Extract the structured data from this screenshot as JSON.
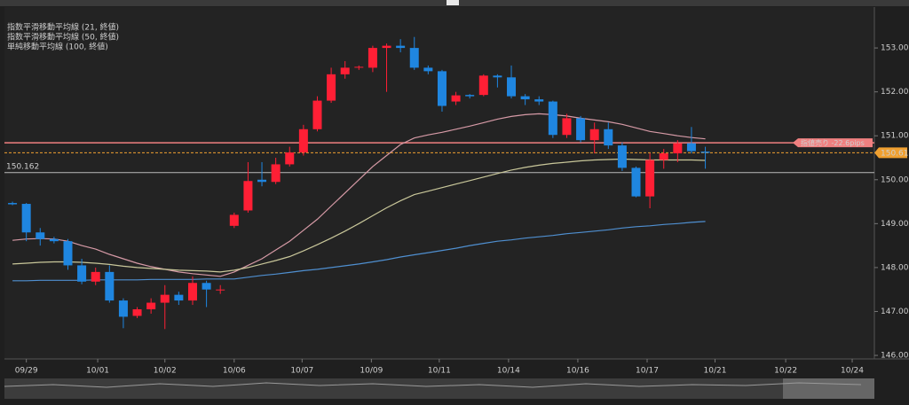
{
  "chart_data": {
    "type": "candlestick",
    "x": [
      0,
      1,
      2,
      3,
      4,
      5,
      6,
      7,
      8,
      9,
      10,
      11,
      12,
      13,
      14,
      15,
      16,
      17,
      18,
      19,
      20,
      21,
      22,
      23,
      24,
      25,
      26,
      27,
      28,
      29,
      30,
      31,
      32,
      33,
      34,
      35,
      36,
      37,
      38,
      39,
      40,
      41,
      42,
      43,
      44,
      45,
      46,
      47,
      48,
      49,
      50
    ],
    "open": [
      149.47,
      149.45,
      148.8,
      148.65,
      148.6,
      148.05,
      147.68,
      147.9,
      147.25,
      146.9,
      147.05,
      147.2,
      147.38,
      147.25,
      147.65,
      147.49,
      148.95,
      149.3,
      150.0,
      149.95,
      150.35,
      150.62,
      151.15,
      151.8,
      152.4,
      152.55,
      152.55,
      153.0,
      153.05,
      153.0,
      152.55,
      152.47,
      151.78,
      151.93,
      151.93,
      152.37,
      152.33,
      151.9,
      151.83,
      151.78,
      151.02,
      151.4,
      150.9,
      151.15,
      150.78,
      150.27,
      149.62,
      150.45,
      150.6,
      150.83,
      150.64
    ],
    "high": [
      149.5,
      149.47,
      148.9,
      148.7,
      148.65,
      148.2,
      148.0,
      148.05,
      147.3,
      147.1,
      147.3,
      147.6,
      147.45,
      147.8,
      147.7,
      147.6,
      149.25,
      150.4,
      150.4,
      150.5,
      150.75,
      151.25,
      151.9,
      152.55,
      152.7,
      152.6,
      153.05,
      153.1,
      153.2,
      153.25,
      152.6,
      152.5,
      152.0,
      151.95,
      152.4,
      152.4,
      152.6,
      151.95,
      151.9,
      151.8,
      151.5,
      151.45,
      151.3,
      151.3,
      150.85,
      150.3,
      150.6,
      150.7,
      150.9,
      151.2,
      150.75
    ],
    "low": [
      149.42,
      148.6,
      148.5,
      148.55,
      147.95,
      147.62,
      147.6,
      147.2,
      146.62,
      146.85,
      146.95,
      146.6,
      147.15,
      147.15,
      147.1,
      147.4,
      148.9,
      149.25,
      149.85,
      149.9,
      150.3,
      150.55,
      151.1,
      151.75,
      152.3,
      152.5,
      152.45,
      152.0,
      152.9,
      152.5,
      152.4,
      151.55,
      151.7,
      151.85,
      151.9,
      152.1,
      151.85,
      151.7,
      151.7,
      150.95,
      150.95,
      150.85,
      150.6,
      150.7,
      150.2,
      149.6,
      149.35,
      150.25,
      150.4,
      150.6,
      150.25
    ],
    "close": [
      149.44,
      148.8,
      148.65,
      148.6,
      148.05,
      147.68,
      147.9,
      147.25,
      146.88,
      147.05,
      147.2,
      147.38,
      147.25,
      147.65,
      147.5,
      147.5,
      149.2,
      149.97,
      149.95,
      150.35,
      150.62,
      151.15,
      151.8,
      152.4,
      152.55,
      152.57,
      153.0,
      153.05,
      153.0,
      152.55,
      152.47,
      151.68,
      151.92,
      151.9,
      152.37,
      152.33,
      151.9,
      151.83,
      151.78,
      151.02,
      151.4,
      150.9,
      151.15,
      150.78,
      150.27,
      149.62,
      150.45,
      150.6,
      150.83,
      150.65,
      150.614
    ],
    "up_color": "#ff1f35",
    "down_color": "#1f86e0",
    "series": [
      {
        "name": "指数平滑移動平均線 (21, 終値)",
        "color": "#d69aa6",
        "values": [
          148.62,
          148.65,
          148.66,
          148.65,
          148.6,
          148.5,
          148.42,
          148.3,
          148.2,
          148.1,
          148.02,
          147.96,
          147.9,
          147.86,
          147.83,
          147.8,
          147.9,
          148.05,
          148.2,
          148.4,
          148.6,
          148.85,
          149.1,
          149.4,
          149.7,
          150.0,
          150.3,
          150.55,
          150.8,
          150.95,
          151.02,
          151.08,
          151.15,
          151.22,
          151.3,
          151.38,
          151.44,
          151.48,
          151.5,
          151.48,
          151.45,
          151.4,
          151.36,
          151.32,
          151.26,
          151.18,
          151.1,
          151.05,
          151.0,
          150.96,
          150.93
        ]
      },
      {
        "name": "指数平滑移動平均線 (50, 終値)",
        "color": "#c9c79a",
        "values": [
          148.08,
          148.1,
          148.12,
          148.13,
          148.13,
          148.12,
          148.1,
          148.07,
          148.03,
          148.0,
          147.98,
          147.96,
          147.94,
          147.93,
          147.92,
          147.9,
          147.94,
          148.0,
          148.08,
          148.16,
          148.25,
          148.38,
          148.52,
          148.67,
          148.83,
          149.0,
          149.18,
          149.36,
          149.52,
          149.66,
          149.74,
          149.82,
          149.9,
          149.98,
          150.06,
          150.14,
          150.22,
          150.28,
          150.33,
          150.37,
          150.4,
          150.43,
          150.45,
          150.46,
          150.47,
          150.46,
          150.45,
          150.45,
          150.45,
          150.45,
          150.44
        ]
      },
      {
        "name": "単純移動平均線 (100, 終値)",
        "color": "#4f8fd0",
        "values": [
          147.7,
          147.7,
          147.71,
          147.71,
          147.71,
          147.71,
          147.72,
          147.72,
          147.72,
          147.72,
          147.73,
          147.73,
          147.73,
          147.73,
          147.74,
          147.74,
          147.74,
          147.78,
          147.82,
          147.85,
          147.89,
          147.93,
          147.96,
          148.0,
          148.04,
          148.08,
          148.13,
          148.18,
          148.24,
          148.29,
          148.34,
          148.39,
          148.44,
          148.5,
          148.55,
          148.6,
          148.63,
          148.67,
          148.7,
          148.73,
          148.77,
          148.8,
          148.83,
          148.86,
          148.9,
          148.93,
          148.95,
          148.98,
          149.0,
          149.03,
          149.05
        ]
      }
    ],
    "current_price": 150.614,
    "current_price_color": "#f0a030",
    "reference_line": 150.162,
    "order_line": {
      "value": 150.84,
      "label": "指値売り -22.6pips"
    },
    "order_color": "#f08080",
    "xlim": [
      -0.58,
      62.2
    ],
    "xticks": [
      {
        "value": 1,
        "label": "09/29"
      },
      {
        "value": 6.15,
        "label": "10/01"
      },
      {
        "value": 11,
        "label": "10/02"
      },
      {
        "value": 16,
        "label": "10/06"
      },
      {
        "value": 20.9,
        "label": "10/07"
      },
      {
        "value": 25.9,
        "label": "10/09"
      },
      {
        "value": 30.8,
        "label": "10/11"
      },
      {
        "value": 35.8,
        "label": "10/14"
      },
      {
        "value": 40.8,
        "label": "10/16"
      },
      {
        "value": 45.8,
        "label": "10/17"
      },
      {
        "value": 50.7,
        "label": "10/21"
      },
      {
        "value": 55.8,
        "label": "10/22"
      },
      {
        "value": 60.6,
        "label": "10/24"
      }
    ],
    "ylim": [
      145.92,
      153.93
    ],
    "yticks": [
      {
        "value": 146,
        "label": "146.000"
      },
      {
        "value": 147,
        "label": "147.000"
      },
      {
        "value": 148,
        "label": "148.000"
      },
      {
        "value": 149,
        "label": "149.000"
      },
      {
        "value": 150,
        "label": "150.000"
      },
      {
        "value": 151,
        "label": "151.000"
      },
      {
        "value": 152,
        "label": "152.000"
      },
      {
        "value": 153,
        "label": "153.000"
      }
    ],
    "legend": "top-left"
  }
}
